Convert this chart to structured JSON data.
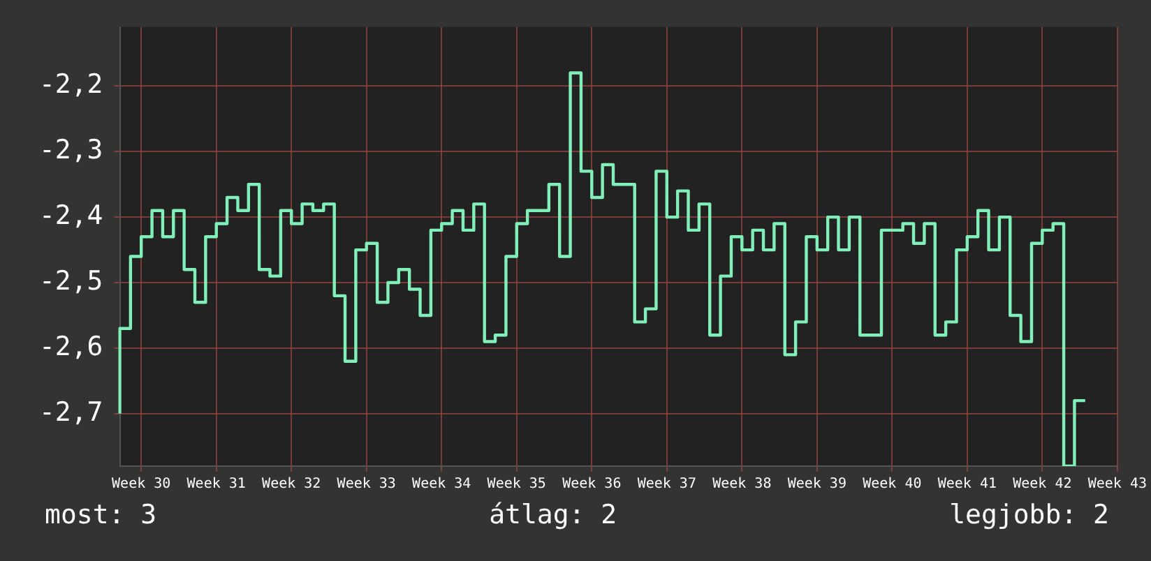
{
  "chart_data": {
    "type": "step",
    "categories": [
      null,
      null,
      "Week 30",
      null,
      null,
      null,
      null,
      null,
      null,
      "Week 31",
      null,
      null,
      null,
      null,
      null,
      null,
      "Week 32",
      null,
      null,
      null,
      null,
      null,
      null,
      "Week 33",
      null,
      null,
      null,
      null,
      null,
      null,
      "Week 34",
      null,
      null,
      null,
      null,
      null,
      null,
      "Week 35",
      null,
      null,
      null,
      null,
      null,
      null,
      "Week 36",
      null,
      null,
      null,
      null,
      null,
      null,
      "Week 37",
      null,
      null,
      null,
      null,
      null,
      null,
      "Week 38",
      null,
      null,
      null,
      null,
      null,
      null,
      "Week 39",
      null,
      null,
      null,
      null,
      null,
      null,
      "Week 40",
      null,
      null,
      null,
      null,
      null,
      null,
      "Week 41",
      null,
      null,
      null,
      null,
      null,
      null,
      "Week 42",
      null,
      null,
      null,
      null,
      null,
      null,
      "Week 43"
    ],
    "series": [
      {
        "color": "#80f0b8",
        "values": [
          -2.7,
          -2.57,
          -2.46,
          -2.43,
          -2.39,
          -2.43,
          -2.39,
          -2.48,
          -2.53,
          -2.43,
          -2.41,
          -2.37,
          -2.39,
          -2.35,
          -2.48,
          -2.49,
          -2.39,
          -2.41,
          -2.38,
          -2.39,
          -2.38,
          -2.52,
          -2.62,
          -2.45,
          -2.44,
          -2.53,
          -2.5,
          -2.48,
          -2.51,
          -2.55,
          -2.42,
          -2.41,
          -2.39,
          -2.42,
          -2.38,
          -2.59,
          -2.58,
          -2.46,
          -2.41,
          -2.39,
          -2.39,
          -2.35,
          -2.46,
          -2.18,
          -2.33,
          -2.37,
          -2.32,
          -2.35,
          -2.35,
          -2.56,
          -2.54,
          -2.33,
          -2.4,
          -2.36,
          -2.42,
          -2.38,
          -2.58,
          -2.49,
          -2.43,
          -2.45,
          -2.42,
          -2.45,
          -2.41,
          -2.61,
          -2.56,
          -2.43,
          -2.45,
          -2.4,
          -2.45,
          -2.4,
          -2.58,
          -2.58,
          -2.42,
          -2.42,
          -2.41,
          -2.44,
          -2.41,
          -2.58,
          -2.56,
          -2.45,
          -2.43,
          -2.39,
          -2.45,
          -2.4,
          -2.55,
          -2.59,
          -2.44,
          -2.42,
          -2.41,
          -2.78,
          -2.68,
          null,
          null,
          null
        ]
      }
    ],
    "ylim": [
      -2.78,
      -2.11
    ],
    "yticks": [
      {
        "value": -2.7,
        "label": "-2,7"
      },
      {
        "value": -2.6,
        "label": "-2,6"
      },
      {
        "value": -2.5,
        "label": "-2,5"
      },
      {
        "value": -2.4,
        "label": "-2,4"
      },
      {
        "value": -2.3,
        "label": "-2,3"
      },
      {
        "value": -2.2,
        "label": "-2,2"
      }
    ],
    "grid": true,
    "legend": false,
    "marker": "none",
    "line_style": "solid",
    "annotations": [
      "most: 3",
      "átlag: 2",
      "legjobb: 2"
    ]
  }
}
